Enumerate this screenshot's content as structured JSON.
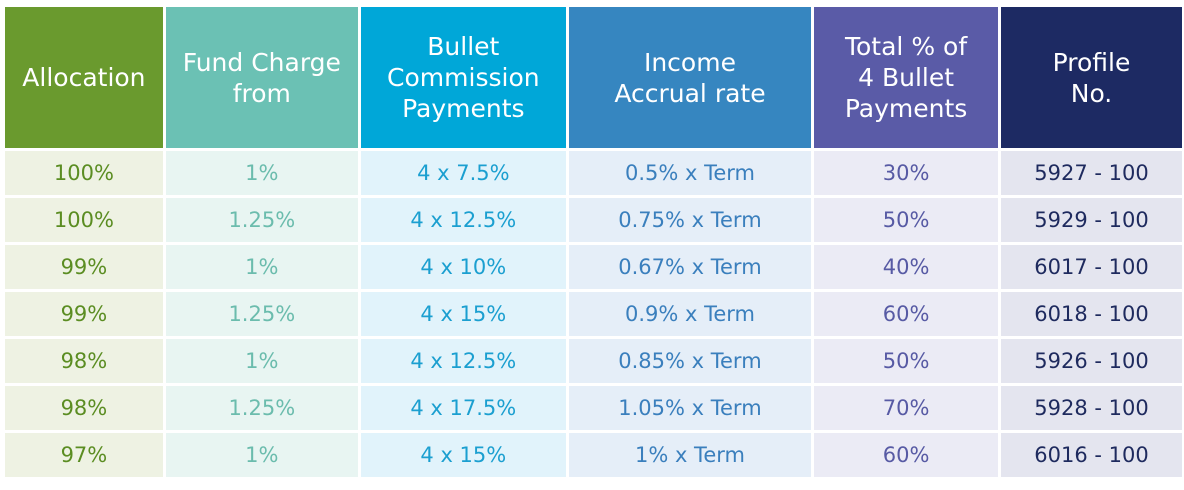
{
  "colors": {
    "allocation_header": "#6a9a2e",
    "allocation_cell_bg": "#eef2e3",
    "allocation_text": "#5b8d22",
    "fund_header": "#6bc1b4",
    "fund_cell_bg": "#e8f5f2",
    "fund_text": "#6bbcad",
    "bullet_header": "#00a7d8",
    "bullet_cell_bg": "#e1f3fb",
    "bullet_text": "#1b9fd0",
    "income_header": "#3686c0",
    "income_cell_bg": "#e5eef8",
    "income_text": "#3a7fbd",
    "total_header": "#5a5ba7",
    "total_cell_bg": "#ebebf5",
    "total_text": "#575aa4",
    "profile_header": "#1d2a63",
    "profile_cell_bg": "#e4e5ef",
    "profile_text": "#1e2a5e"
  },
  "table": {
    "headers": [
      "Allocation",
      "Fund Charge\nfrom",
      "Bullet\nCommission\nPayments",
      "Income\nAccrual rate",
      "Total % of\n4 Bullet\nPayments",
      "Profile\nNo."
    ],
    "rows": [
      [
        "100%",
        "1%",
        "4 x 7.5%",
        "0.5% x Term",
        "30%",
        "5927 - 100"
      ],
      [
        "100%",
        "1.25%",
        "4 x 12.5%",
        "0.75% x Term",
        "50%",
        "5929 - 100"
      ],
      [
        "99%",
        "1%",
        "4 x 10%",
        "0.67% x Term",
        "40%",
        "6017 - 100"
      ],
      [
        "99%",
        "1.25%",
        "4 x 15%",
        "0.9% x Term",
        "60%",
        "6018 - 100"
      ],
      [
        "98%",
        "1%",
        "4 x 12.5%",
        "0.85% x Term",
        "50%",
        "5926 - 100"
      ],
      [
        "98%",
        "1.25%",
        "4 x 17.5%",
        "1.05% x Term",
        "70%",
        "5928 - 100"
      ],
      [
        "97%",
        "1%",
        "4 x 15%",
        "1% x Term",
        "60%",
        "6016 - 100"
      ]
    ]
  }
}
